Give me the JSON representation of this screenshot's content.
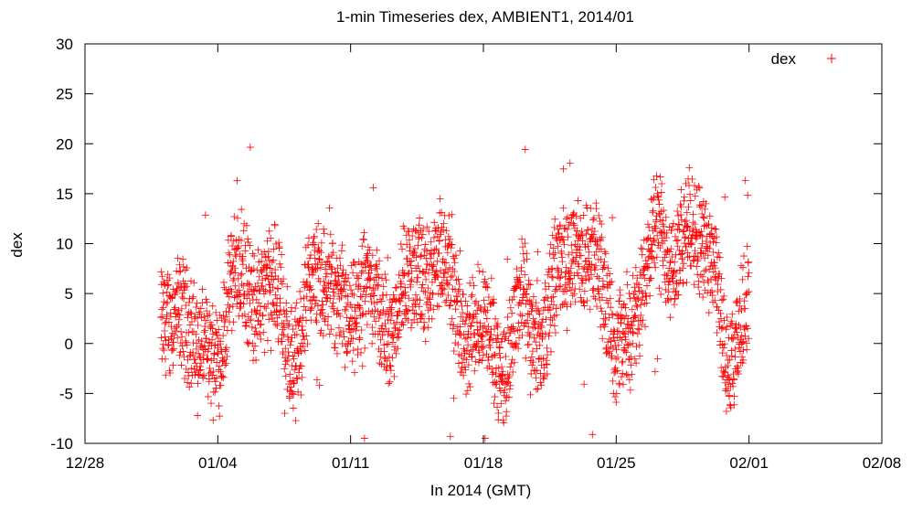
{
  "chart_data": {
    "type": "scatter",
    "title": "1-min Timeseries dex, AMBIENT1, 2014/01",
    "xlabel": "In 2014 (GMT)",
    "ylabel": "dex",
    "x_axis_type": "date",
    "xlim": [
      "2013-12-28",
      "2014-02-08"
    ],
    "ylim": [
      -10,
      30
    ],
    "x_ticks": [
      "12/28",
      "01/04",
      "01/11",
      "01/18",
      "01/25",
      "02/01",
      "02/08"
    ],
    "y_ticks": [
      "-10",
      "-5",
      "0",
      "5",
      "10",
      "15",
      "20",
      "25",
      "30"
    ],
    "grid": false,
    "legend": "top-right",
    "marker": "+",
    "data_range": [
      "2014-01-01",
      "2014-02-01"
    ],
    "series": [
      {
        "name": "dex",
        "color": "#ff0000",
        "x": [
          "2014-01-01",
          "2014-01-02",
          "2014-01-03",
          "2014-01-04",
          "2014-01-05",
          "2014-01-06",
          "2014-01-07",
          "2014-01-08",
          "2014-01-09",
          "2014-01-10",
          "2014-01-11",
          "2014-01-12",
          "2014-01-13",
          "2014-01-14",
          "2014-01-15",
          "2014-01-16",
          "2014-01-17",
          "2014-01-18",
          "2014-01-19",
          "2014-01-20",
          "2014-01-21",
          "2014-01-22",
          "2014-01-23",
          "2014-01-24",
          "2014-01-25",
          "2014-01-26",
          "2014-01-27",
          "2014-01-28",
          "2014-01-29",
          "2014-01-30",
          "2014-01-31",
          "2014-02-01"
        ],
        "y": [
          2,
          3,
          0,
          -1,
          8,
          4,
          6,
          -2,
          7,
          5,
          2,
          6,
          1,
          7,
          6,
          9,
          0,
          3,
          -3,
          5,
          0,
          8,
          9,
          8,
          0,
          2,
          12,
          8,
          12,
          8,
          -3,
          5
        ]
      }
    ]
  }
}
